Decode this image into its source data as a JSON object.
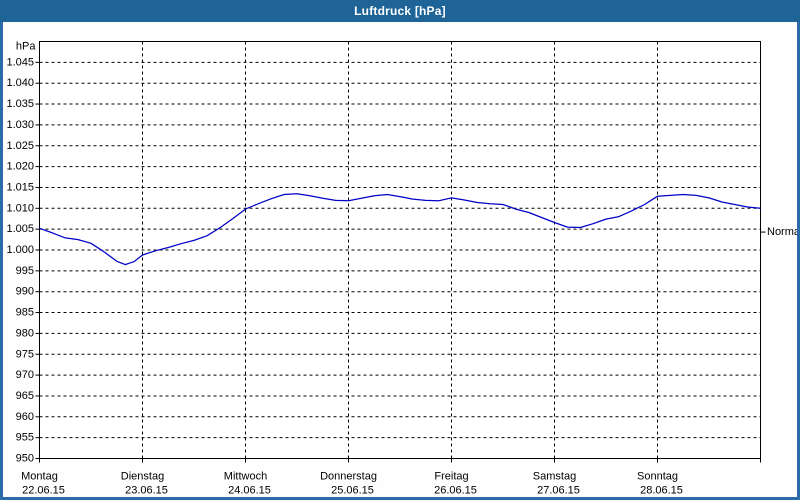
{
  "window": {
    "title": "Luftdruck [hPa]"
  },
  "colors": {
    "titlebar_bg": "#1e6496",
    "window_border": "#2a6da6",
    "chart_bg": "#fdfefd",
    "plot_bg": "#ffffff",
    "grid": "#000000",
    "frame": "#000000",
    "text": "#000000",
    "series_line": "#0000c8"
  },
  "chart_data": {
    "type": "line",
    "title": "Luftdruck [hPa]",
    "unit_label": "hPa",
    "grid": true,
    "ylim": [
      950,
      1050
    ],
    "y_ticks": [
      {
        "value": 1045,
        "label": "1.045"
      },
      {
        "value": 1040,
        "label": "1.040"
      },
      {
        "value": 1035,
        "label": "1.035"
      },
      {
        "value": 1030,
        "label": "1.030"
      },
      {
        "value": 1025,
        "label": "1.025"
      },
      {
        "value": 1020,
        "label": "1.020"
      },
      {
        "value": 1015,
        "label": "1.015"
      },
      {
        "value": 1010,
        "label": "1.010"
      },
      {
        "value": 1005,
        "label": "1.005"
      },
      {
        "value": 1000,
        "label": "1.000"
      },
      {
        "value": 995,
        "label": "995"
      },
      {
        "value": 990,
        "label": "990"
      },
      {
        "value": 985,
        "label": "985"
      },
      {
        "value": 980,
        "label": "980"
      },
      {
        "value": 975,
        "label": "975"
      },
      {
        "value": 970,
        "label": "970"
      },
      {
        "value": 965,
        "label": "965"
      },
      {
        "value": 960,
        "label": "960"
      },
      {
        "value": 955,
        "label": "955"
      },
      {
        "value": 950,
        "label": "950"
      }
    ],
    "x_days": [
      {
        "name": "Montag",
        "date": "22.06.15"
      },
      {
        "name": "Dienstag",
        "date": "23.06.15"
      },
      {
        "name": "Mittwoch",
        "date": "24.06.15"
      },
      {
        "name": "Donnerstag",
        "date": "25.06.15"
      },
      {
        "name": "Freitag",
        "date": "26.06.15"
      },
      {
        "name": "Samstag",
        "date": "27.06.15"
      },
      {
        "name": "Sonntag",
        "date": "28.06.15"
      }
    ],
    "x_range_hours": [
      0,
      168
    ],
    "normal_marker": {
      "label": "Normal",
      "value": 1004.3
    },
    "series": [
      {
        "name": "Luftdruck",
        "x_hours": [
          0,
          3,
          6,
          9,
          12,
          15,
          18,
          20,
          22,
          24,
          27,
          30,
          33,
          36,
          39,
          42,
          45,
          48,
          51,
          54,
          57,
          60,
          63,
          66,
          69,
          72,
          75,
          78,
          81,
          84,
          87,
          90,
          93,
          96,
          99,
          102,
          105,
          108,
          111,
          114,
          117,
          120,
          123,
          126,
          129,
          132,
          135,
          138,
          141,
          144,
          147,
          150,
          153,
          156,
          159,
          162,
          165,
          168
        ],
        "values": [
          1005.2,
          1004.1,
          1002.9,
          1002.5,
          1001.6,
          999.6,
          997.3,
          996.5,
          997.2,
          998.8,
          999.8,
          1000.6,
          1001.5,
          1002.3,
          1003.4,
          1005.3,
          1007.5,
          1009.8,
          1011.1,
          1012.3,
          1013.3,
          1013.5,
          1013.0,
          1012.4,
          1011.9,
          1011.8,
          1012.4,
          1013.0,
          1013.3,
          1012.8,
          1012.2,
          1011.9,
          1011.8,
          1012.5,
          1012.0,
          1011.4,
          1011.1,
          1010.9,
          1009.8,
          1009.0,
          1007.8,
          1006.6,
          1005.5,
          1005.4,
          1006.3,
          1007.4,
          1008.0,
          1009.4,
          1010.9,
          1012.9,
          1013.1,
          1013.3,
          1013.1,
          1012.5,
          1011.5,
          1010.9,
          1010.3,
          1010.0
        ]
      }
    ]
  }
}
